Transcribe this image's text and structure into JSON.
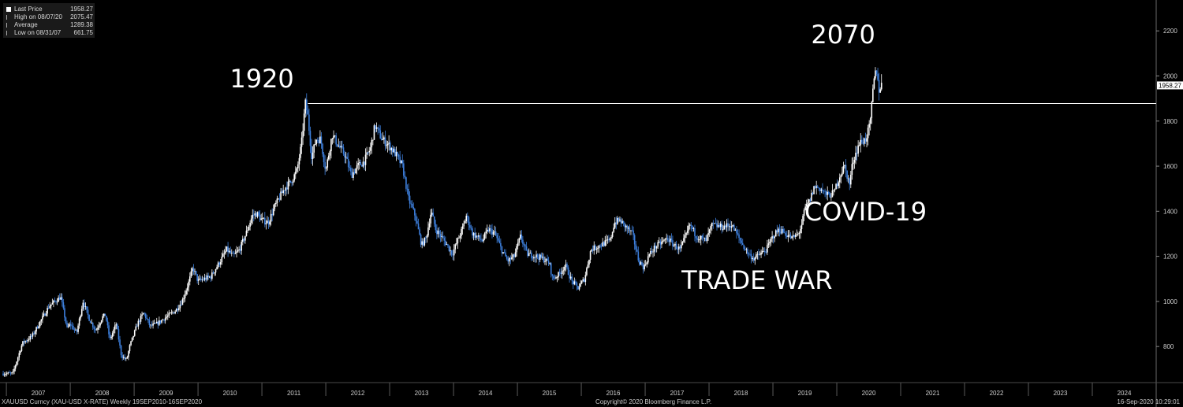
{
  "legend": {
    "items": [
      {
        "label": "Last Price",
        "value": "1958.27"
      },
      {
        "label": "High on 08/07/20",
        "value": "2075.47"
      },
      {
        "label": "Average",
        "value": "1289.38"
      },
      {
        "label": "Low on 08/31/07",
        "value": "661.75"
      }
    ]
  },
  "footer": {
    "left": "XAUUSD Curncy (XAU-USD X-RATE)  Weekly 19SEP2010-16SEP2020",
    "center": "Copyright© 2020 Bloomberg Finance L.P.",
    "right": "16-Sep-2020 10:29:01"
  },
  "colors": {
    "background": "#000000",
    "up_candle": "#ffffff",
    "down_candle": "#3d7fdc",
    "reference_line": "#ffffff",
    "axis_text": "#cfcfcf"
  },
  "chart_data": {
    "type": "candlestick",
    "title": "",
    "xlabel": "",
    "ylabel": "",
    "interval": "weekly",
    "ylim": [
      640,
      2330
    ],
    "xlim": [
      2006.9,
      2025.0
    ],
    "y_ticks": [
      800,
      1000,
      1200,
      1400,
      1600,
      1800,
      2000,
      2200
    ],
    "x_ticks": [
      "2007",
      "2008",
      "2009",
      "2010",
      "2011",
      "2012",
      "2013",
      "2014",
      "2015",
      "2016",
      "2017",
      "2018",
      "2019",
      "2020",
      "2021",
      "2022",
      "2023",
      "2024"
    ],
    "last_price_label": "1958.27",
    "last_price": 1958.27,
    "reference_line": 1878,
    "annotations": [
      {
        "text": "1920",
        "x": 2011.0,
        "y": 1950
      },
      {
        "text": "2070",
        "x": 2020.1,
        "y": 2145
      },
      {
        "text": "COVID-19",
        "x": 2020.45,
        "y": 1360
      },
      {
        "text": "TRADE WAR",
        "x": 2018.75,
        "y": 1055
      }
    ],
    "price_path": [
      [
        2006.95,
        680
      ],
      [
        2007.1,
        680
      ],
      [
        2007.25,
        815
      ],
      [
        2007.4,
        845
      ],
      [
        2007.55,
        920
      ],
      [
        2007.67,
        980
      ],
      [
        2007.85,
        1020
      ],
      [
        2007.95,
        880
      ],
      [
        2008.0,
        900
      ],
      [
        2008.1,
        860
      ],
      [
        2008.15,
        930
      ],
      [
        2008.2,
        1000
      ],
      [
        2008.3,
        920
      ],
      [
        2008.4,
        870
      ],
      [
        2008.5,
        930
      ],
      [
        2008.55,
        940
      ],
      [
        2008.62,
        830
      ],
      [
        2008.72,
        900
      ],
      [
        2008.8,
        760
      ],
      [
        2008.88,
        740
      ],
      [
        2008.93,
        800
      ],
      [
        2009.05,
        900
      ],
      [
        2009.15,
        950
      ],
      [
        2009.25,
        890
      ],
      [
        2009.35,
        900
      ],
      [
        2009.5,
        930
      ],
      [
        2009.65,
        960
      ],
      [
        2009.75,
        1000
      ],
      [
        2009.85,
        1080
      ],
      [
        2009.92,
        1150
      ],
      [
        2010.0,
        1090
      ],
      [
        2010.1,
        1100
      ],
      [
        2010.2,
        1110
      ],
      [
        2010.35,
        1180
      ],
      [
        2010.45,
        1230
      ],
      [
        2010.55,
        1200
      ],
      [
        2010.65,
        1230
      ],
      [
        2010.75,
        1300
      ],
      [
        2010.85,
        1380
      ],
      [
        2010.92,
        1390
      ],
      [
        2011.0,
        1360
      ],
      [
        2011.1,
        1350
      ],
      [
        2011.2,
        1420
      ],
      [
        2011.35,
        1500
      ],
      [
        2011.45,
        1530
      ],
      [
        2011.55,
        1580
      ],
      [
        2011.62,
        1700
      ],
      [
        2011.68,
        1880
      ],
      [
        2011.72,
        1820
      ],
      [
        2011.78,
        1640
      ],
      [
        2011.85,
        1720
      ],
      [
        2011.92,
        1720
      ],
      [
        2012.0,
        1580
      ],
      [
        2012.1,
        1740
      ],
      [
        2012.2,
        1690
      ],
      [
        2012.3,
        1650
      ],
      [
        2012.4,
        1560
      ],
      [
        2012.5,
        1600
      ],
      [
        2012.6,
        1620
      ],
      [
        2012.7,
        1680
      ],
      [
        2012.77,
        1780
      ],
      [
        2012.88,
        1720
      ],
      [
        2013.0,
        1690
      ],
      [
        2013.1,
        1650
      ],
      [
        2013.2,
        1600
      ],
      [
        2013.3,
        1450
      ],
      [
        2013.4,
        1380
      ],
      [
        2013.5,
        1250
      ],
      [
        2013.57,
        1280
      ],
      [
        2013.65,
        1400
      ],
      [
        2013.72,
        1320
      ],
      [
        2013.8,
        1290
      ],
      [
        2013.9,
        1250
      ],
      [
        2013.98,
        1210
      ],
      [
        2014.05,
        1260
      ],
      [
        2014.15,
        1330
      ],
      [
        2014.2,
        1380
      ],
      [
        2014.3,
        1300
      ],
      [
        2014.45,
        1270
      ],
      [
        2014.55,
        1320
      ],
      [
        2014.65,
        1300
      ],
      [
        2014.75,
        1230
      ],
      [
        2014.85,
        1180
      ],
      [
        2014.95,
        1200
      ],
      [
        2015.05,
        1290
      ],
      [
        2015.15,
        1210
      ],
      [
        2015.3,
        1200
      ],
      [
        2015.4,
        1190
      ],
      [
        2015.5,
        1170
      ],
      [
        2015.55,
        1100
      ],
      [
        2015.65,
        1120
      ],
      [
        2015.75,
        1160
      ],
      [
        2015.85,
        1090
      ],
      [
        2015.95,
        1060
      ],
      [
        2016.05,
        1100
      ],
      [
        2016.15,
        1230
      ],
      [
        2016.3,
        1250
      ],
      [
        2016.45,
        1270
      ],
      [
        2016.52,
        1350
      ],
      [
        2016.6,
        1360
      ],
      [
        2016.7,
        1330
      ],
      [
        2016.8,
        1300
      ],
      [
        2016.9,
        1180
      ],
      [
        2016.98,
        1150
      ],
      [
        2017.05,
        1200
      ],
      [
        2017.15,
        1240
      ],
      [
        2017.25,
        1260
      ],
      [
        2017.35,
        1280
      ],
      [
        2017.45,
        1250
      ],
      [
        2017.55,
        1230
      ],
      [
        2017.65,
        1300
      ],
      [
        2017.7,
        1340
      ],
      [
        2017.8,
        1290
      ],
      [
        2017.95,
        1270
      ],
      [
        2018.05,
        1340
      ],
      [
        2018.2,
        1330
      ],
      [
        2018.35,
        1340
      ],
      [
        2018.45,
        1290
      ],
      [
        2018.55,
        1240
      ],
      [
        2018.62,
        1210
      ],
      [
        2018.7,
        1190
      ],
      [
        2018.8,
        1210
      ],
      [
        2018.9,
        1230
      ],
      [
        2019.0,
        1290
      ],
      [
        2019.1,
        1320
      ],
      [
        2019.2,
        1300
      ],
      [
        2019.3,
        1280
      ],
      [
        2019.4,
        1300
      ],
      [
        2019.45,
        1340
      ],
      [
        2019.5,
        1410
      ],
      [
        2019.58,
        1450
      ],
      [
        2019.65,
        1510
      ],
      [
        2019.75,
        1500
      ],
      [
        2019.85,
        1470
      ],
      [
        2019.95,
        1480
      ],
      [
        2020.05,
        1560
      ],
      [
        2020.12,
        1600
      ],
      [
        2020.2,
        1520
      ],
      [
        2020.25,
        1620
      ],
      [
        2020.35,
        1700
      ],
      [
        2020.45,
        1720
      ],
      [
        2020.52,
        1780
      ],
      [
        2020.58,
        1980
      ],
      [
        2020.62,
        2030
      ],
      [
        2020.66,
        1940
      ],
      [
        2020.7,
        1960
      ]
    ]
  }
}
